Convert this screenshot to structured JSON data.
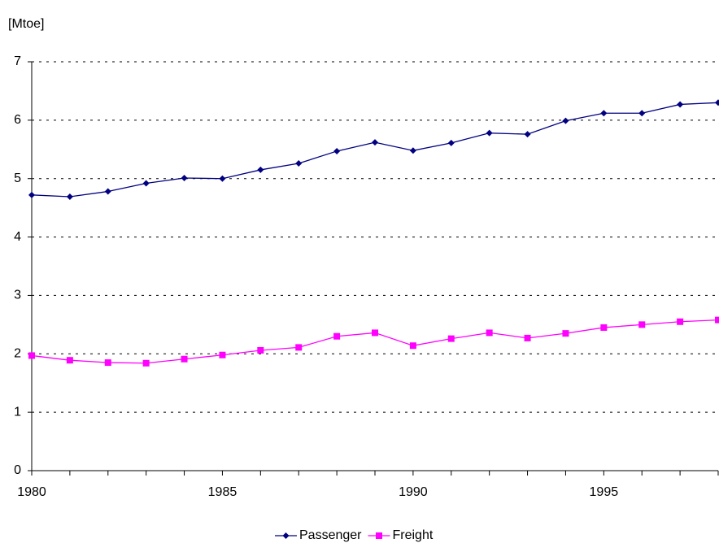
{
  "chart_data": {
    "type": "line",
    "y_label": "[Mtoe]",
    "x": [
      1980,
      1981,
      1982,
      1983,
      1984,
      1985,
      1986,
      1987,
      1988,
      1989,
      1990,
      1991,
      1992,
      1993,
      1994,
      1995,
      1996,
      1997,
      1998
    ],
    "series": [
      {
        "name": "Passenger",
        "color": "#000080",
        "marker": "diamond",
        "values": [
          4.72,
          4.69,
          4.78,
          4.92,
          5.01,
          5.0,
          5.15,
          5.26,
          5.47,
          5.62,
          5.48,
          5.61,
          5.78,
          5.76,
          5.99,
          6.12,
          6.12,
          6.27,
          6.3
        ]
      },
      {
        "name": "Freight",
        "color": "#ff00ff",
        "marker": "square",
        "values": [
          1.97,
          1.89,
          1.85,
          1.84,
          1.91,
          1.98,
          2.06,
          2.11,
          2.3,
          2.36,
          2.14,
          2.26,
          2.36,
          2.27,
          2.35,
          2.45,
          2.5,
          2.55,
          2.58
        ]
      }
    ],
    "xlim": [
      1980,
      1998
    ],
    "xticks": [
      1980,
      1985,
      1990,
      1995
    ],
    "ylim": [
      0,
      7
    ],
    "yticks": [
      0,
      1,
      2,
      3,
      4,
      5,
      6,
      7
    ],
    "grid": true,
    "legend": "bottom"
  }
}
